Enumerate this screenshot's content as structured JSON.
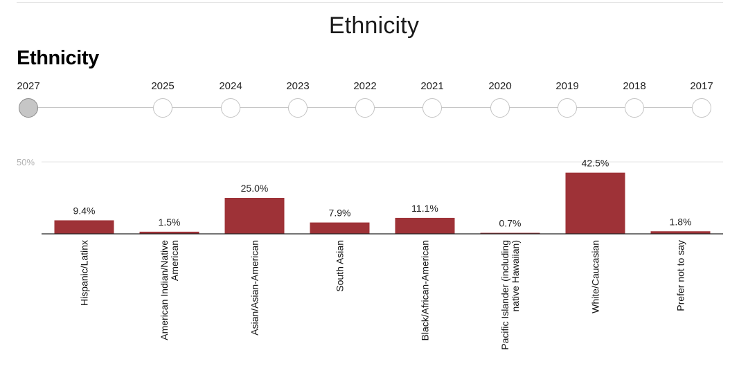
{
  "header": {
    "title": "Ethnicity"
  },
  "chart_heading": "Ethnicity",
  "timeline": {
    "years": [
      "2027",
      "2025",
      "2024",
      "2023",
      "2022",
      "2021",
      "2020",
      "2019",
      "2018",
      "2017"
    ],
    "selected": "2027"
  },
  "colors": {
    "bar": "#9e3237",
    "grid": "#e6e6e6",
    "axis": "#222222",
    "tick_label": "#b3b3b3"
  },
  "chart_data": {
    "type": "bar",
    "title": "Ethnicity",
    "categories": [
      "Hispanic/Latinx",
      "American Indian/Native American",
      "Asian/Asian-American",
      "South Asian",
      "Black/African-American",
      "Pacific Islander (including native Hawaiian)",
      "White/Caucasian",
      "Prefer not to say"
    ],
    "category_lines": [
      [
        "Hispanic/Latinx"
      ],
      [
        "American Indian/Native",
        "American"
      ],
      [
        "Asian/Asian-American"
      ],
      [
        "South Asian"
      ],
      [
        "Black/African-American"
      ],
      [
        "Pacific Islander (including",
        "native Hawaiian)"
      ],
      [
        "White/Caucasian"
      ],
      [
        "Prefer not to say"
      ]
    ],
    "values": [
      9.4,
      1.5,
      25.0,
      7.9,
      11.1,
      0.7,
      42.5,
      1.8
    ],
    "data_labels": [
      "9.4%",
      "1.5%",
      "25.0%",
      "7.9%",
      "11.1%",
      "0.7%",
      "42.5%",
      "1.8%"
    ],
    "yticks": [
      {
        "value": 50,
        "label": "50%"
      }
    ],
    "ylim": [
      0,
      50
    ],
    "grid": true,
    "legend": false
  }
}
